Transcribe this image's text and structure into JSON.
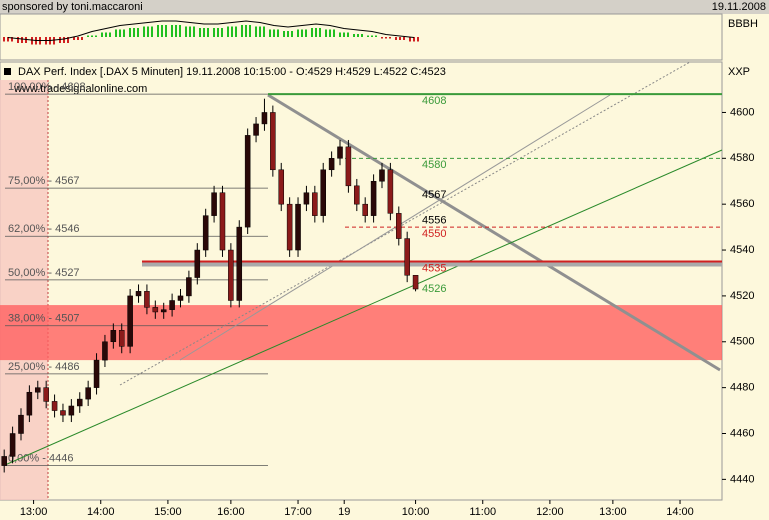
{
  "header": {
    "left": "sponsored by toni.maccaroni",
    "right": "19.11.2008"
  },
  "indicator": {
    "label": "BBBH",
    "ylim": [
      -1,
      1
    ],
    "values": [
      -0.3,
      -0.4,
      -0.5,
      -0.5,
      -0.4,
      -0.2,
      0.1,
      0.3,
      0.5,
      0.6,
      0.7,
      0.8,
      0.8,
      0.7,
      0.6,
      0.6,
      0.7,
      0.8,
      0.7,
      0.5,
      0.4,
      0.5,
      0.6,
      0.5,
      0.3,
      0.2,
      0.1,
      -0.1,
      -0.2,
      -0.3
    ]
  },
  "chart_data": {
    "type": "candlestick",
    "title": "DAX Perf. Index [.DAX  5 Minuten] 19.11.2008 10:15:00 - O:4529 H:4529 L:4522 C:4523",
    "source": "www.tradesignalonline.com",
    "axis_label": "XXP",
    "up_color": "#2a0808",
    "down_color": "#8b1a1a",
    "open": [
      4446,
      4450,
      4460,
      4468,
      4478,
      4480,
      4474,
      4470,
      4468,
      4472,
      4475,
      4480,
      4492,
      4500,
      4505,
      4498,
      4520,
      4522,
      4515,
      4513,
      4514,
      4518,
      4520,
      4528,
      4540,
      4555,
      4565,
      4540,
      4518,
      4550,
      4590,
      4595,
      4600,
      4575,
      4560,
      4540,
      4560,
      4565,
      4555,
      4575,
      4580,
      4585,
      4568,
      4560,
      4555,
      4570,
      4575,
      4556,
      4545,
      4529
    ],
    "high": [
      4453,
      4463,
      4471,
      4481,
      4483,
      4483,
      4477,
      4473,
      4475,
      4478,
      4483,
      4495,
      4503,
      4508,
      4508,
      4523,
      4525,
      4525,
      4518,
      4517,
      4521,
      4523,
      4531,
      4543,
      4558,
      4568,
      4568,
      4543,
      4553,
      4593,
      4598,
      4606,
      4603,
      4578,
      4563,
      4563,
      4568,
      4568,
      4578,
      4583,
      4588,
      4588,
      4571,
      4563,
      4573,
      4578,
      4578,
      4559,
      4548,
      4529
    ],
    "low": [
      4443,
      4447,
      4457,
      4465,
      4475,
      4471,
      4467,
      4465,
      4465,
      4469,
      4472,
      4477,
      4489,
      4497,
      4495,
      4495,
      4517,
      4512,
      4510,
      4510,
      4511,
      4515,
      4517,
      4525,
      4537,
      4552,
      4537,
      4515,
      4515,
      4547,
      4587,
      4592,
      4572,
      4557,
      4537,
      4537,
      4557,
      4552,
      4552,
      4572,
      4577,
      4565,
      4557,
      4552,
      4552,
      4567,
      4553,
      4542,
      4526,
      4522
    ],
    "close": [
      4450,
      4460,
      4468,
      4478,
      4480,
      4474,
      4470,
      4468,
      4472,
      4475,
      4480,
      4492,
      4500,
      4505,
      4498,
      4520,
      4522,
      4515,
      4513,
      4514,
      4518,
      4520,
      4528,
      4540,
      4555,
      4565,
      4540,
      4518,
      4550,
      4590,
      4595,
      4600,
      4575,
      4560,
      4540,
      4560,
      4565,
      4555,
      4575,
      4580,
      4585,
      4568,
      4560,
      4555,
      4570,
      4575,
      4556,
      4545,
      4529,
      4523
    ],
    "xlim": [
      -0.5,
      85.5
    ],
    "xticks": [
      {
        "value": 3.5,
        "label": "13:00"
      },
      {
        "value": 11.5,
        "label": "14:00"
      },
      {
        "value": 19.5,
        "label": "15:00"
      },
      {
        "value": 27,
        "label": "16:00"
      },
      {
        "value": 35,
        "label": "17:00"
      },
      {
        "value": 40.5,
        "label": "19"
      },
      {
        "value": 49,
        "label": "10:00"
      },
      {
        "value": 57,
        "label": "11:00"
      },
      {
        "value": 65,
        "label": "12:00"
      },
      {
        "value": 72.5,
        "label": "13:00"
      },
      {
        "value": 80.5,
        "label": "14:00"
      }
    ],
    "ylim": [
      4431,
      4622
    ],
    "yticks": [
      4440,
      4460,
      4480,
      4500,
      4520,
      4540,
      4560,
      4580,
      4600
    ],
    "fib_levels": [
      {
        "value": 4608,
        "label": "100,00% - 4608"
      },
      {
        "value": 4567,
        "label": "75,00% - 4567"
      },
      {
        "value": 4546,
        "label": "62,00% - 4546"
      },
      {
        "value": 4527,
        "label": "50,00% - 4527"
      },
      {
        "value": 4507,
        "label": "38,00% - 4507"
      },
      {
        "value": 4486,
        "label": "25,00% - 4486"
      },
      {
        "value": 4446,
        "label": "0,00% - 4446"
      }
    ],
    "levels": [
      {
        "value": 4608,
        "label": "4608",
        "color": "#3a9a3a"
      },
      {
        "value": 4580,
        "label": "4580",
        "color": "#3a9a3a"
      },
      {
        "value": 4567,
        "label": "4567",
        "color": "#000000"
      },
      {
        "value": 4556,
        "label": "4556",
        "color": "#000000"
      },
      {
        "value": 4550,
        "label": "4550",
        "color": "#d02020"
      },
      {
        "value": 4535,
        "label": "4535",
        "color": "#d02020"
      },
      {
        "value": 4526,
        "label": "4526",
        "color": "#3a9a3a"
      }
    ],
    "zone": [
      4492,
      4516
    ]
  }
}
